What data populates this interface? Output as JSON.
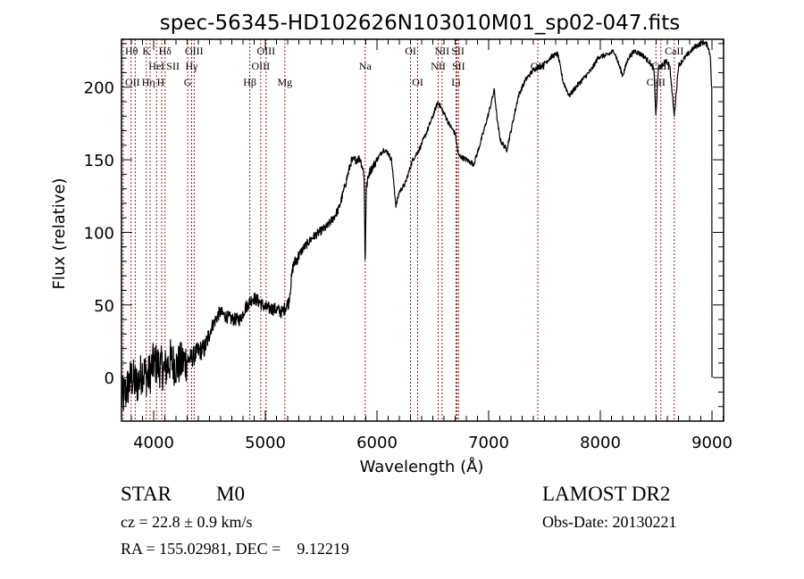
{
  "chart_data": {
    "type": "line",
    "title": "spec-56345-HD102626N103010M01_sp02-047.fits",
    "xlabel": "Wavelength (Å)",
    "ylabel": "Flux (relative)",
    "xlim": [
      3712,
      9104
    ],
    "ylim": [
      -30,
      233
    ],
    "xticks": [
      4000,
      5000,
      6000,
      7000,
      8000,
      9000
    ],
    "yticks": [
      0,
      50,
      100,
      150,
      200
    ],
    "grid": false,
    "line_color": "#000000",
    "marker_color": "#8b2323",
    "spectral_lines": [
      {
        "label": "OII",
        "wavelength": 3727,
        "row": 3
      },
      {
        "label": "Hθ",
        "wavelength": 3798,
        "row": 1
      },
      {
        "label": "Hη",
        "wavelength": 3835,
        "row": 3
      },
      {
        "label": "K",
        "wavelength": 3934,
        "row": 1
      },
      {
        "label": "H",
        "wavelength": 3968,
        "row": 3
      },
      {
        "label": "HeI",
        "wavelength": 4026,
        "row": 2
      },
      {
        "label": "SII",
        "wavelength": 4072,
        "row": 2
      },
      {
        "label": "Hδ",
        "wavelength": 4102,
        "row": 1
      },
      {
        "label": "G",
        "wavelength": 4305,
        "row": 3
      },
      {
        "label": "Hγ",
        "wavelength": 4340,
        "row": 2
      },
      {
        "label": "OIII",
        "wavelength": 4363,
        "row": 1
      },
      {
        "label": "Hβ",
        "wavelength": 4861,
        "row": 3
      },
      {
        "label": "OIII",
        "wavelength": 4959,
        "row": 2
      },
      {
        "label": "OIII",
        "wavelength": 5007,
        "row": 1
      },
      {
        "label": "Mg",
        "wavelength": 5175,
        "row": 3
      },
      {
        "label": "Na",
        "wavelength": 5894,
        "row": 2
      },
      {
        "label": "OI",
        "wavelength": 6300,
        "row": 1
      },
      {
        "label": "OI",
        "wavelength": 6364,
        "row": 3
      },
      {
        "label": "NII",
        "wavelength": 6548,
        "row": 2
      },
      {
        "label": "NII",
        "wavelength": 6583,
        "row": 1
      },
      {
        "label": "Li",
        "wavelength": 6708,
        "row": 3
      },
      {
        "label": "SII",
        "wavelength": 6717,
        "row": 1
      },
      {
        "label": "SII",
        "wavelength": 6731,
        "row": 2
      },
      {
        "label": "OII",
        "wavelength": 7440,
        "row": 2
      },
      {
        "label": "CaII",
        "wavelength": 8498,
        "row": 3
      },
      {
        "label": "CaII",
        "wavelength": 8542,
        "row": 2
      },
      {
        "label": "CaII",
        "wavelength": 8662,
        "row": 1
      }
    ],
    "series": [
      {
        "name": "flux",
        "x": [
          3712,
          3750,
          3800,
          3850,
          3900,
          3950,
          4000,
          4050,
          4100,
          4150,
          4200,
          4250,
          4300,
          4350,
          4400,
          4456,
          4520,
          4592,
          4650,
          4700,
          4776,
          4820,
          4889,
          4950,
          5000,
          5097,
          5150,
          5209,
          5249,
          5330,
          5417,
          5480,
          5553,
          5610,
          5657,
          5700,
          5769,
          5849,
          5885,
          5894,
          5903,
          5929,
          6000,
          6057,
          6097,
          6130,
          6170,
          6200,
          6250,
          6320,
          6378,
          6450,
          6500,
          6546,
          6600,
          6650,
          6700,
          6730,
          6800,
          6866,
          6900,
          6946,
          7000,
          7050,
          7080,
          7106,
          7162,
          7200,
          7266,
          7330,
          7402,
          7480,
          7562,
          7618,
          7666,
          7722,
          7780,
          7850,
          7920,
          7986,
          8060,
          8123,
          8200,
          8250,
          8307,
          8380,
          8443,
          8480,
          8498,
          8520,
          8560,
          8580,
          8620,
          8662,
          8700,
          8787,
          8850,
          8923,
          8960,
          8987,
          8995,
          9000,
          9002
        ],
        "y": [
          -15,
          -10,
          0,
          -5,
          5,
          0,
          10,
          8,
          5,
          12,
          8,
          10,
          12,
          14,
          18,
          20,
          35,
          45,
          42,
          40,
          40,
          48,
          55,
          52,
          48,
          47,
          45,
          52,
          77,
          88,
          96,
          100,
          104,
          110,
          116,
          128,
          149,
          151,
          140,
          74,
          130,
          141,
          150,
          157,
          155,
          150,
          118,
          128,
          133,
          150,
          157,
          170,
          180,
          190,
          182,
          174,
          168,
          153,
          150,
          147,
          155,
          167,
          182,
          198,
          175,
          163,
          157,
          170,
          194,
          205,
          212,
          215,
          221,
          223,
          204,
          194,
          200,
          206,
          212,
          221,
          222,
          225,
          208,
          220,
          225,
          222,
          217,
          212,
          180,
          214,
          215,
          218,
          216,
          180,
          215,
          223,
          228,
          231,
          229,
          221,
          200,
          5,
          0
        ]
      }
    ]
  },
  "info": {
    "object_class": "STAR",
    "subclass": "M0",
    "survey": "LAMOST DR2",
    "redshift": "cz = 22.8 ± 0.9 km/s",
    "obs_date": "Obs-Date: 20130221",
    "coords": "RA = 155.02981, DEC =    9.12219"
  }
}
